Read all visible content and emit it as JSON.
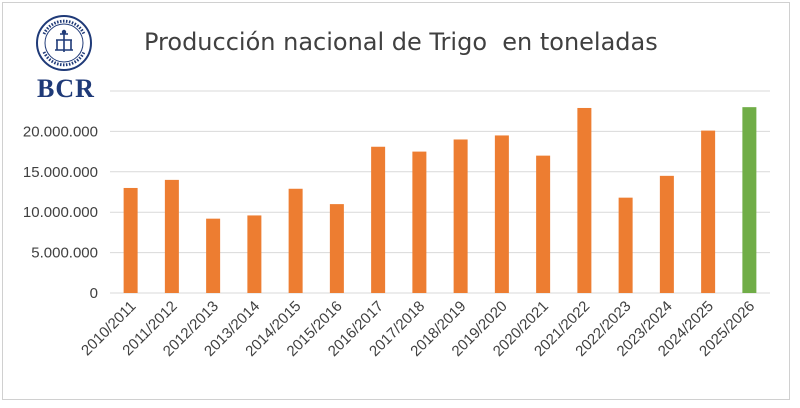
{
  "brand": {
    "logo_text": "BCR",
    "seal_text": "BOLSA DE COMERCIO DE ROSARIO"
  },
  "chart_data": {
    "type": "bar",
    "title": "Producción nacional de Trigo  en toneladas",
    "xlabel": "",
    "ylabel": "",
    "ylim": [
      0,
      25000000
    ],
    "yticks": [
      "0",
      "5.000.000",
      "10.000.000",
      "15.000.000",
      "20.000.000"
    ],
    "ytick_values": [
      0,
      5000000,
      10000000,
      15000000,
      20000000
    ],
    "grid": "horizontal",
    "categories": [
      "2010/2011",
      "2011/2012",
      "2012/2013",
      "2013/2014",
      "2014/2015",
      "2015/2016",
      "2016/2017",
      "2017/2018",
      "2018/2019",
      "2019/2020",
      "2020/2021",
      "2021/2022",
      "2022/2023",
      "2023/2024",
      "2024/2025",
      "2025/2026"
    ],
    "values": [
      13000000,
      14000000,
      9200000,
      9600000,
      12900000,
      11000000,
      18100000,
      17500000,
      19000000,
      19500000,
      17000000,
      22900000,
      11800000,
      14500000,
      20100000,
      23000000
    ],
    "colors": {
      "default": "#ed7d31",
      "highlight": "#70ad47",
      "grid": "#d9d9d9",
      "text": "#404040"
    },
    "highlight_index": 15
  }
}
